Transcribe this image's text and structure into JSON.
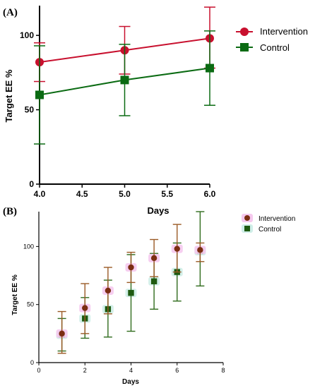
{
  "colors": {
    "intervention_a": "#c8102e",
    "control_a": "#0b6b13",
    "intervention_b": "#7b2d12",
    "control_b": "#1e5a10",
    "error_b_intervention": "#9a5a25",
    "error_b_control": "#2f6b1c",
    "highlight_b_intervention": "#f5c9ee",
    "highlight_b_control": "#cfeee8",
    "axis": "#000000"
  },
  "chart_data": [
    {
      "panel_label": "(A)",
      "type": "line",
      "xlabel": "Days",
      "ylabel": "Target EE %",
      "xlim": [
        4.0,
        6.0
      ],
      "ylim": [
        0,
        120
      ],
      "x_ticks": [
        "4.0",
        "4.5",
        "5.0",
        "5.5",
        "6.0"
      ],
      "y_ticks": [
        "0",
        "50",
        "100"
      ],
      "legend_position": "right",
      "series": [
        {
          "name": "Intervention",
          "marker": "circle",
          "color": "#c8102e",
          "points": [
            {
              "x": 4.0,
              "y": 82,
              "low": 69,
              "high": 95
            },
            {
              "x": 5.0,
              "y": 90,
              "low": 74,
              "high": 106
            },
            {
              "x": 6.0,
              "y": 98,
              "low": 78,
              "high": 119
            }
          ]
        },
        {
          "name": "Control",
          "marker": "square",
          "color": "#0b6b13",
          "points": [
            {
              "x": 4.0,
              "y": 60,
              "low": 27,
              "high": 93
            },
            {
              "x": 5.0,
              "y": 70,
              "low": 46,
              "high": 94
            },
            {
              "x": 6.0,
              "y": 78,
              "low": 53,
              "high": 103
            }
          ]
        }
      ]
    },
    {
      "panel_label": "(B)",
      "type": "scatter",
      "xlabel": "Days",
      "ylabel": "Target EE %",
      "xlim": [
        0,
        8
      ],
      "ylim": [
        0,
        130
      ],
      "x_ticks": [
        "0",
        "2",
        "4",
        "6",
        "8"
      ],
      "y_ticks": [
        "0",
        "50",
        "100"
      ],
      "legend_position": "top-right",
      "series": [
        {
          "name": "Intervention",
          "marker": "circle",
          "color": "#7b2d12",
          "points": [
            {
              "x": 1,
              "y": 25,
              "low": 8,
              "high": 44
            },
            {
              "x": 2,
              "y": 47,
              "low": 25,
              "high": 68
            },
            {
              "x": 3,
              "y": 62,
              "low": 42,
              "high": 82
            },
            {
              "x": 4,
              "y": 82,
              "low": 69,
              "high": 95
            },
            {
              "x": 5,
              "y": 90,
              "low": 74,
              "high": 106
            },
            {
              "x": 6,
              "y": 98,
              "low": 78,
              "high": 119
            },
            {
              "x": 7,
              "y": 97,
              "low": 87,
              "high": 103
            }
          ]
        },
        {
          "name": "Control",
          "marker": "square",
          "color": "#1e5a10",
          "points": [
            {
              "x": 1,
              "y": 24,
              "low": 10,
              "high": 38
            },
            {
              "x": 2,
              "y": 38,
              "low": 21,
              "high": 56
            },
            {
              "x": 3,
              "y": 46,
              "low": 22,
              "high": 71
            },
            {
              "x": 4,
              "y": 60,
              "low": 27,
              "high": 93
            },
            {
              "x": 5,
              "y": 70,
              "low": 46,
              "high": 94
            },
            {
              "x": 6,
              "y": 78,
              "low": 53,
              "high": 103
            },
            {
              "x": 7,
              "y": 96,
              "low": 66,
              "high": 130
            }
          ]
        }
      ]
    }
  ]
}
